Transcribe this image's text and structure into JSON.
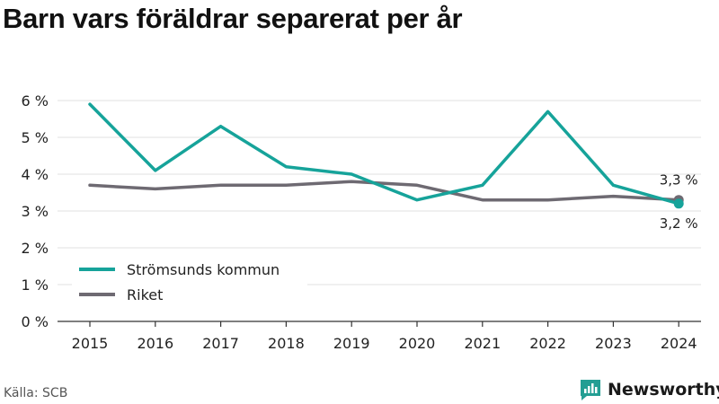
{
  "title": "Barn vars föräldrar separerat per år",
  "source": "Källa: SCB",
  "brand": "Newsworthy",
  "colors": {
    "series1": "#16a39a",
    "series2": "#6e6a72",
    "axis": "#333333",
    "grid": "#e2e2e2",
    "brand": "#239e93"
  },
  "chart_data": {
    "type": "line",
    "x": [
      "2015",
      "2016",
      "2017",
      "2018",
      "2019",
      "2020",
      "2021",
      "2022",
      "2023",
      "2024"
    ],
    "yticks": [
      "0 %",
      "1 %",
      "2 %",
      "3 %",
      "4 %",
      "5 %",
      "6 %"
    ],
    "ylim": [
      0,
      6
    ],
    "grid": true,
    "legend_position": "bottom-left",
    "series": [
      {
        "name": "Strömsunds kommun",
        "values": [
          5.9,
          4.1,
          5.3,
          4.2,
          4.0,
          3.3,
          3.7,
          5.7,
          3.7,
          3.2
        ],
        "end_label": "3,2 %"
      },
      {
        "name": "Riket",
        "values": [
          3.7,
          3.6,
          3.7,
          3.7,
          3.8,
          3.7,
          3.3,
          3.3,
          3.4,
          3.3
        ],
        "end_label": "3,3 %"
      }
    ]
  }
}
